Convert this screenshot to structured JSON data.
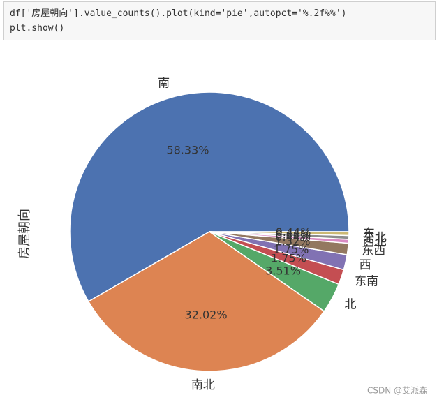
{
  "code": [
    "df['房屋朝向'].value_counts().plot(kind='pie',autopct='%.2f%%')",
    "plt.show()"
  ],
  "watermark": "CSDN @艾派森",
  "chart_data": {
    "type": "pie",
    "ylabel": "房屋朝向",
    "categories": [
      "南",
      "南北",
      "北",
      "东南",
      "西",
      "东西",
      "西北",
      "东北",
      "东"
    ],
    "values": [
      58.33,
      32.02,
      3.51,
      1.75,
      1.75,
      1.32,
      0.44,
      0.44,
      0.44
    ],
    "value_labels": [
      "58.33%",
      "32.02%",
      "3.51%",
      "1.75%",
      "1.75%",
      "1.32%",
      "0.44%",
      "0.44%",
      "0.44%"
    ],
    "colors": [
      "#4c72b0",
      "#dd8452",
      "#55a868",
      "#c44e52",
      "#8172b3",
      "#937860",
      "#da8bc3",
      "#8c8c8c",
      "#ccb974"
    ],
    "startangle": 0
  }
}
